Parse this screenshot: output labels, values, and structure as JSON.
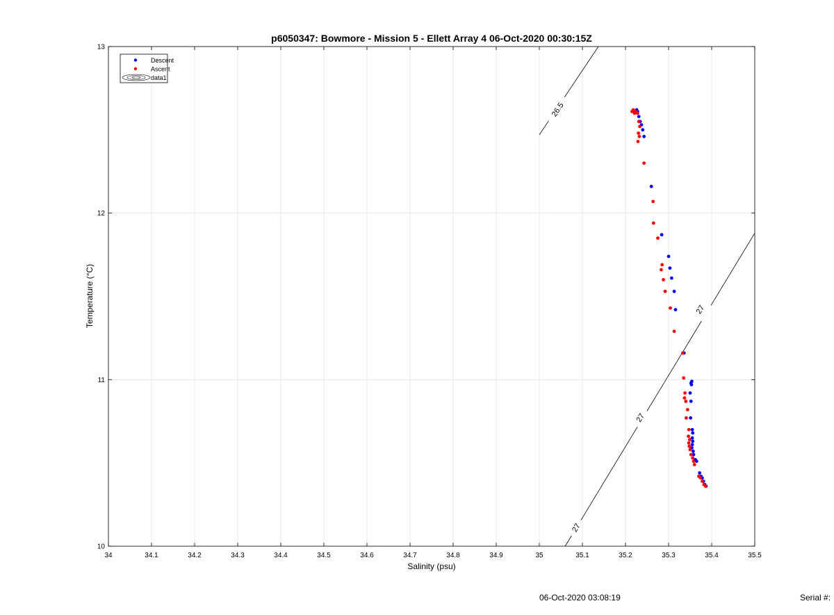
{
  "footer": {
    "timestamp": "06-Oct-2020 03:08:19",
    "serial_label": "Serial #:"
  },
  "chart_data": {
    "type": "scatter",
    "title": "p6050347: Bowmore - Mission 5 - Ellett Array 4 06-Oct-2020 00:30:15Z",
    "xlabel": "Salinity (psu)",
    "ylabel": "Temperature (°C)",
    "xlim": [
      34,
      35.5
    ],
    "ylim": [
      10,
      13
    ],
    "xticks": [
      "34",
      "34.1",
      "34.2",
      "34.3",
      "34.4",
      "34.5",
      "34.6",
      "34.7",
      "34.8",
      "34.9",
      "35",
      "35.1",
      "35.2",
      "35.3",
      "35.4",
      "35.5"
    ],
    "yticks": [
      "10",
      "11",
      "12",
      "13"
    ],
    "grid": true,
    "legend": {
      "placement": "top-left",
      "entries": [
        "Descent",
        "Ascent",
        "data1"
      ]
    },
    "colors": {
      "descent": "#0000ff",
      "ascent": "#ff0000",
      "contour": "#000000",
      "grid": "#e3e3e3"
    },
    "contours": [
      {
        "label": "26.5",
        "points": [
          [
            35.0,
            12.47
          ],
          [
            35.137,
            13.0
          ]
        ],
        "label_positions": [
          [
            35.043,
            12.62
          ]
        ]
      },
      {
        "label": "27",
        "points": [
          [
            35.06,
            10.0
          ],
          [
            35.5,
            11.88
          ]
        ],
        "label_positions": [
          [
            35.086,
            10.11
          ],
          [
            35.235,
            10.77
          ],
          [
            35.374,
            11.42
          ]
        ]
      }
    ],
    "series": [
      {
        "name": "Descent",
        "points": [
          [
            35.222,
            12.61
          ],
          [
            35.226,
            12.62
          ],
          [
            35.228,
            12.61
          ],
          [
            35.231,
            12.58
          ],
          [
            35.234,
            12.55
          ],
          [
            35.237,
            12.53
          ],
          [
            35.24,
            12.5
          ],
          [
            35.243,
            12.46
          ],
          [
            35.26,
            12.16
          ],
          [
            35.284,
            11.87
          ],
          [
            35.3,
            11.74
          ],
          [
            35.303,
            11.67
          ],
          [
            35.307,
            11.61
          ],
          [
            35.313,
            11.53
          ],
          [
            35.316,
            11.42
          ],
          [
            35.336,
            11.16
          ],
          [
            35.352,
            10.98
          ],
          [
            35.354,
            10.99
          ],
          [
            35.353,
            10.97
          ],
          [
            35.35,
            10.92
          ],
          [
            35.352,
            10.87
          ],
          [
            35.351,
            10.77
          ],
          [
            35.355,
            10.7
          ],
          [
            35.356,
            10.68
          ],
          [
            35.355,
            10.65
          ],
          [
            35.356,
            10.63
          ],
          [
            35.355,
            10.61
          ],
          [
            35.354,
            10.59
          ],
          [
            35.357,
            10.57
          ],
          [
            35.358,
            10.55
          ],
          [
            35.362,
            10.52
          ],
          [
            35.365,
            10.51
          ],
          [
            35.372,
            10.44
          ],
          [
            35.375,
            10.42
          ],
          [
            35.378,
            10.41
          ],
          [
            35.381,
            10.39
          ],
          [
            35.384,
            10.37
          ],
          [
            35.387,
            10.36
          ]
        ]
      },
      {
        "name": "Ascent",
        "points": [
          [
            35.215,
            12.61
          ],
          [
            35.218,
            12.62
          ],
          [
            35.221,
            12.6
          ],
          [
            35.224,
            12.61
          ],
          [
            35.228,
            12.6
          ],
          [
            35.231,
            12.55
          ],
          [
            35.233,
            12.52
          ],
          [
            35.23,
            12.48
          ],
          [
            35.232,
            12.46
          ],
          [
            35.229,
            12.43
          ],
          [
            35.243,
            12.3
          ],
          [
            35.264,
            12.07
          ],
          [
            35.265,
            11.94
          ],
          [
            35.275,
            11.85
          ],
          [
            35.285,
            11.69
          ],
          [
            35.283,
            11.66
          ],
          [
            35.288,
            11.6
          ],
          [
            35.292,
            11.53
          ],
          [
            35.304,
            11.43
          ],
          [
            35.313,
            11.29
          ],
          [
            35.333,
            11.16
          ],
          [
            35.335,
            11.01
          ],
          [
            35.338,
            10.92
          ],
          [
            35.337,
            10.89
          ],
          [
            35.34,
            10.87
          ],
          [
            35.344,
            10.82
          ],
          [
            35.341,
            10.77
          ],
          [
            35.347,
            10.7
          ],
          [
            35.346,
            10.66
          ],
          [
            35.349,
            10.64
          ],
          [
            35.347,
            10.62
          ],
          [
            35.348,
            10.6
          ],
          [
            35.35,
            10.58
          ],
          [
            35.352,
            10.55
          ],
          [
            35.356,
            10.53
          ],
          [
            35.358,
            10.51
          ],
          [
            35.36,
            10.49
          ],
          [
            35.37,
            10.42
          ],
          [
            35.374,
            10.41
          ],
          [
            35.378,
            10.39
          ],
          [
            35.382,
            10.37
          ],
          [
            35.386,
            10.36
          ]
        ]
      }
    ]
  }
}
